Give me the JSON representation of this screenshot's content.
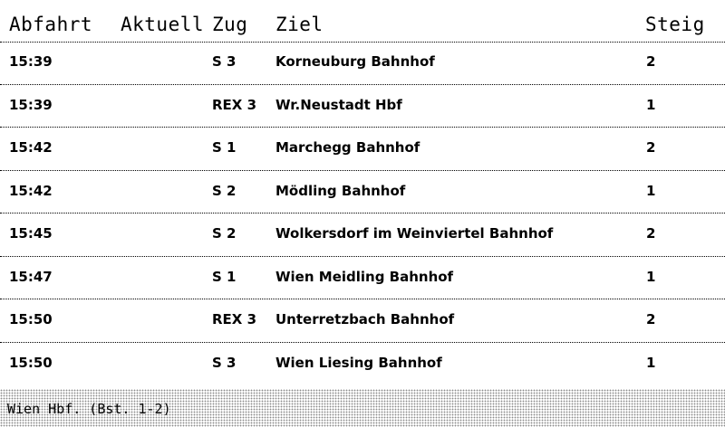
{
  "header": {
    "abfahrt": "Abfahrt",
    "aktuell": "Aktuell",
    "zug": "Zug",
    "ziel": "Ziel",
    "steig": "Steig"
  },
  "departures": [
    {
      "time": "15:39",
      "actual": "",
      "train": "S 3",
      "destination": "Korneuburg Bahnhof",
      "platform": "2"
    },
    {
      "time": "15:39",
      "actual": "",
      "train": "REX 3",
      "destination": "Wr.Neustadt Hbf",
      "platform": "1"
    },
    {
      "time": "15:42",
      "actual": "",
      "train": "S 1",
      "destination": "Marchegg Bahnhof",
      "platform": "2"
    },
    {
      "time": "15:42",
      "actual": "",
      "train": "S 2",
      "destination": "Mödling Bahnhof",
      "platform": "1"
    },
    {
      "time": "15:45",
      "actual": "",
      "train": "S 2",
      "destination": "Wolkersdorf im Weinviertel Bahnhof",
      "platform": "2"
    },
    {
      "time": "15:47",
      "actual": "",
      "train": "S 1",
      "destination": "Wien Meidling Bahnhof",
      "platform": "1"
    },
    {
      "time": "15:50",
      "actual": "",
      "train": "REX 3",
      "destination": "Unterretzbach Bahnhof",
      "platform": "2"
    },
    {
      "time": "15:50",
      "actual": "",
      "train": "S 3",
      "destination": "Wien Liesing Bahnhof",
      "platform": "1"
    }
  ],
  "footer": {
    "station": "Wien Hbf. (Bst. 1-2)"
  }
}
